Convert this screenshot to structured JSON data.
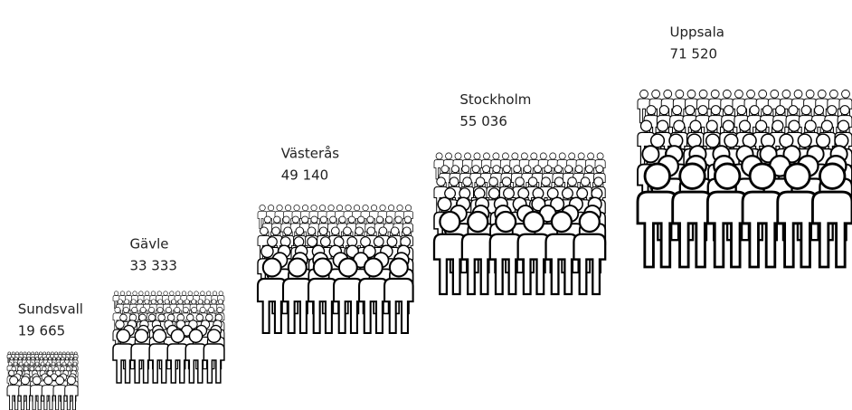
{
  "chart_data": {
    "type": "pictograph",
    "categories": [
      "Sundsvall",
      "Gävle",
      "Västerås",
      "Stockholm",
      "Uppsala"
    ],
    "values": [
      19665,
      33333,
      49140,
      55036,
      71520
    ],
    "value_labels": [
      "19 665",
      "33 333",
      "49 140",
      "55 036",
      "71 520"
    ],
    "color": "#000000"
  }
}
